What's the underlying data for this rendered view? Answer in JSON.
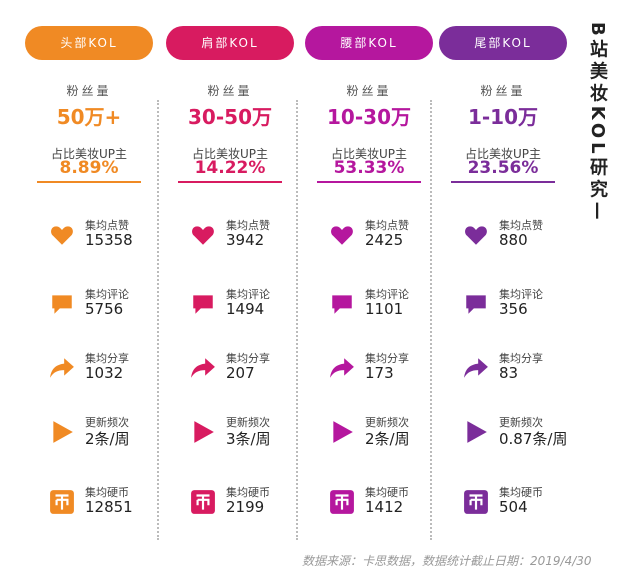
{
  "title": "B站美妆KOL研究—",
  "footer": "数据来源：卡思数据，数据统计截止日期：2019/4/30",
  "labels": {
    "fans": "粉丝量",
    "share": "占比美妆UP主",
    "likes": "集均点赞",
    "comments": "集均评论",
    "shares": "集均分享",
    "frequency": "更新频次",
    "coins": "集均硬币"
  },
  "icons": [
    "heart-icon",
    "comment-icon",
    "share-arrow-icon",
    "play-icon",
    "coin-icon"
  ],
  "tiers": [
    {
      "name": "头部KOL",
      "color": "#f08a24",
      "fans": "50万+",
      "share": "8.89%",
      "likes": "15358",
      "comments": "5756",
      "shares": "1032",
      "frequency": "2条/周",
      "coins": "12851"
    },
    {
      "name": "肩部KOL",
      "color": "#d81b60",
      "fans": "30-50万",
      "share": "14.22%",
      "likes": "3942",
      "comments": "1494",
      "shares": "207",
      "frequency": "3条/周",
      "coins": "2199"
    },
    {
      "name": "腰部KOL",
      "color": "#b5179e",
      "fans": "10-30万",
      "share": "53.33%",
      "likes": "2425",
      "comments": "1101",
      "shares": "173",
      "frequency": "2条/周",
      "coins": "1412"
    },
    {
      "name": "尾部KOL",
      "color": "#7b2d9a",
      "fans": "1-10万",
      "share": "23.56%",
      "likes": "880",
      "comments": "356",
      "shares": "83",
      "frequency": "0.87条/周",
      "coins": "504"
    }
  ]
}
